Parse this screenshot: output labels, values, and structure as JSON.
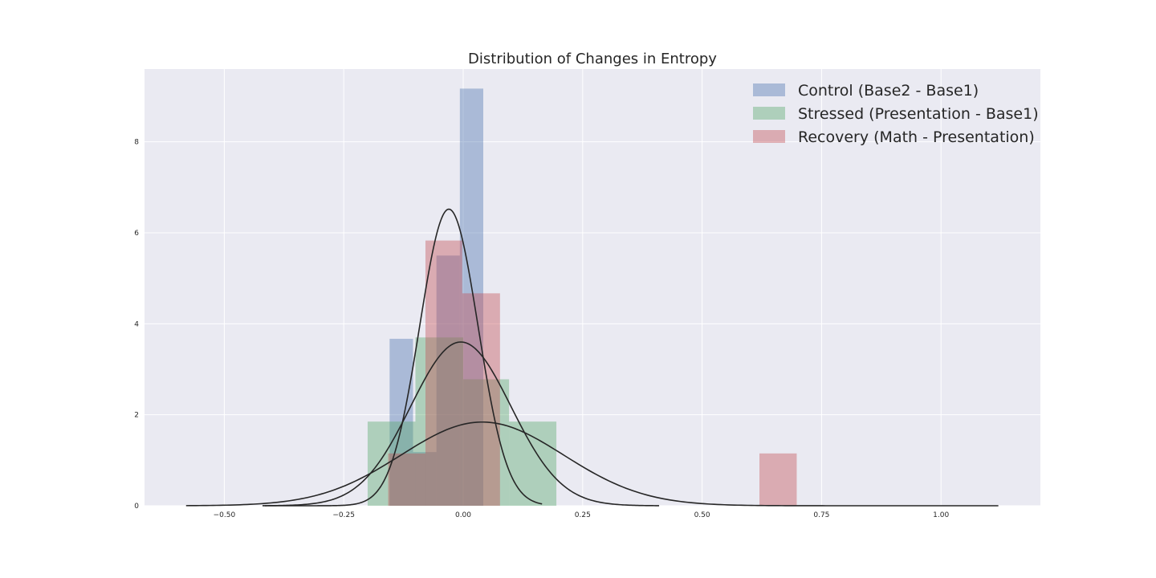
{
  "chart_data": {
    "type": "bar",
    "title": "Distribution of Changes in Entropy",
    "xlabel": "",
    "ylabel": "",
    "xlim": [
      -0.667,
      1.208
    ],
    "ylim": [
      0,
      9.6
    ],
    "x_ticks": [
      -0.5,
      -0.25,
      0.0,
      0.25,
      0.5,
      0.75,
      1.0
    ],
    "x_tick_labels": [
      "−0.50",
      "−0.25",
      "0.00",
      "0.25",
      "0.50",
      "0.75",
      "1.00"
    ],
    "y_ticks": [
      0,
      2,
      4,
      6,
      8
    ],
    "y_tick_labels": [
      "0",
      "2",
      "4",
      "6",
      "8"
    ],
    "grid": true,
    "legend_position": "top-right",
    "colors": {
      "background": "#eaeaf2",
      "grid": "#ffffff",
      "kde_line": "#262626"
    },
    "series": [
      {
        "name": "Control (Base2 - Base1)",
        "color": "#4c72b0",
        "bins": [
          {
            "x0": -0.154,
            "x1": -0.105,
            "height": 3.67
          },
          {
            "x0": -0.105,
            "x1": -0.056,
            "height": 1.18
          },
          {
            "x0": -0.056,
            "x1": -0.007,
            "height": 5.5
          },
          {
            "x0": -0.007,
            "x1": 0.042,
            "height": 9.17
          }
        ],
        "kde": {
          "mean": -0.03,
          "sd": 0.061,
          "peak": 6.52,
          "xmin": -0.415,
          "xmax": 0.165
        }
      },
      {
        "name": "Stressed (Presentation - Base1)",
        "color": "#55a868",
        "bins": [
          {
            "x0": -0.2,
            "x1": -0.1,
            "height": 1.85
          },
          {
            "x0": -0.1,
            "x1": 0.0,
            "height": 3.7
          },
          {
            "x0": 0.0,
            "x1": 0.096,
            "height": 2.78
          },
          {
            "x0": 0.096,
            "x1": 0.195,
            "height": 1.85
          }
        ],
        "kde": {
          "mean": -0.005,
          "sd": 0.105,
          "peak": 3.6,
          "xmin": -0.42,
          "xmax": 0.41
        }
      },
      {
        "name": "Recovery (Math - Presentation)",
        "color": "#c44e52",
        "bins": [
          {
            "x0": -0.157,
            "x1": -0.079,
            "height": 1.15
          },
          {
            "x0": -0.079,
            "x1": -0.002,
            "height": 5.83
          },
          {
            "x0": -0.002,
            "x1": 0.077,
            "height": 4.67
          },
          {
            "x0": 0.62,
            "x1": 0.698,
            "height": 1.15
          }
        ],
        "kde": {
          "mean": 0.04,
          "sd": 0.17,
          "peak": 1.84,
          "xmin": -0.58,
          "xmax": 1.12
        }
      }
    ]
  }
}
